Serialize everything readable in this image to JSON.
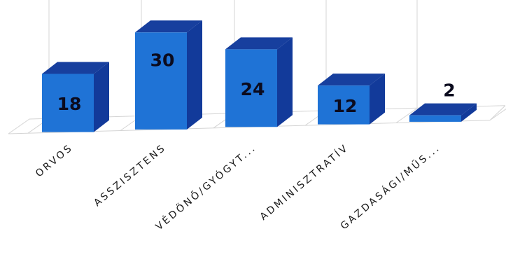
{
  "chart_data": {
    "type": "bar",
    "style": "3d-column",
    "categories": [
      "ORVOS",
      "ASSZISZTENS",
      "VÉDŐNŐ/GYÓGYT...",
      "ADMINISZTRATÍV",
      "GAZDASÁGI/MŰS..."
    ],
    "values": [
      18,
      30,
      24,
      12,
      2
    ],
    "data_labels": [
      "18",
      "30",
      "24",
      "12",
      "2"
    ],
    "title": "",
    "xlabel": "",
    "ylabel": "",
    "ylim": [
      0,
      30
    ],
    "grid": true,
    "legend": "none",
    "colors": {
      "front": "#1f73d6",
      "side": "#123a9a",
      "top": "#173f9e",
      "label": "#0b0b1e"
    }
  }
}
